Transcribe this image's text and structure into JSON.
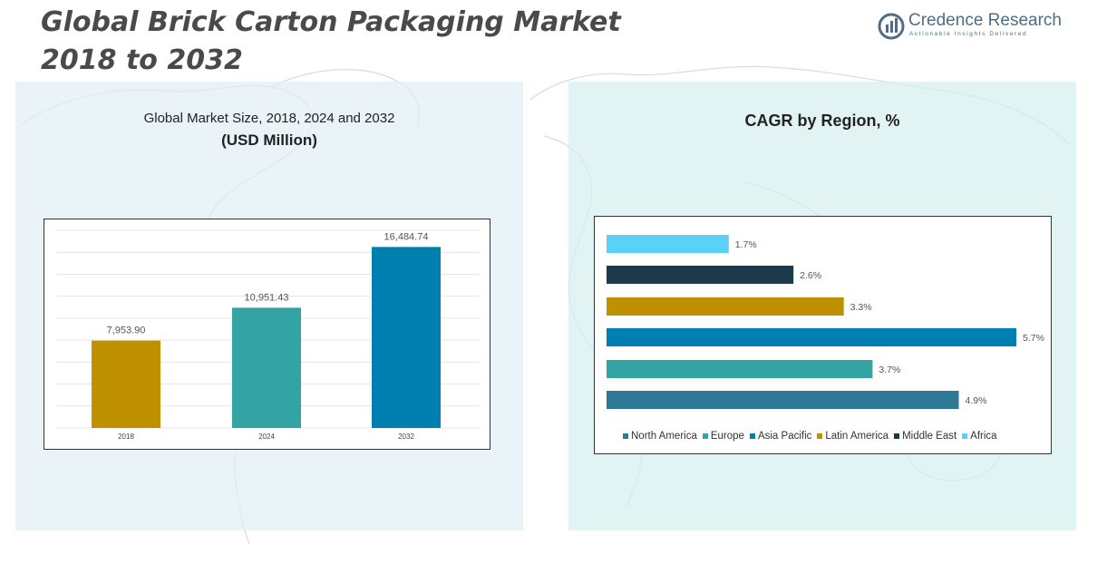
{
  "title": "Global Brick Carton Packaging Market 2018 to 2032",
  "logo": {
    "name": "Credence Research",
    "tagline": "Actionable Insights Delivered",
    "icon": "bar-chart-circle-icon"
  },
  "left_panel": {
    "subtitle": "Global Market Size, 2018, 2024 and 2032",
    "unit": "(USD Million)"
  },
  "right_panel": {
    "title": "CAGR by Region, %"
  },
  "colors": {
    "gold": "#bf9000",
    "teal": "#33a3a3",
    "blue": "#0080b0",
    "dark": "#1b3a4b",
    "light_blue": "#5bd1f7",
    "steel": "#2f7896"
  },
  "chart_data": [
    {
      "type": "bar",
      "title": "Global Market Size, 2018, 2024 and 2032",
      "ylabel": "(USD Million)",
      "categories": [
        "2018",
        "2024",
        "2032"
      ],
      "values": [
        7953.9,
        10951.43,
        16484.74
      ],
      "labels": [
        "7,953.90",
        "10,951.43",
        "16,484.74"
      ],
      "colors": [
        "#bf9000",
        "#33a3a3",
        "#0080b0"
      ],
      "ylim": [
        0,
        18000
      ],
      "grid": true
    },
    {
      "type": "bar",
      "orientation": "horizontal",
      "title": "CAGR by Region, %",
      "categories": [
        "North America",
        "Europe",
        "Asia Pacific",
        "Latin America",
        "Middle East",
        "Africa"
      ],
      "values": [
        4.9,
        3.7,
        5.7,
        3.3,
        2.6,
        1.7
      ],
      "labels": [
        "4.9%",
        "3.7%",
        "5.7%",
        "3.3%",
        "2.6%",
        "1.7%"
      ],
      "colors": [
        "#2f7896",
        "#33a3a3",
        "#0080b0",
        "#bf9000",
        "#1b3a4b",
        "#5bd1f7"
      ],
      "xlim": [
        0,
        5.7
      ],
      "legend_position": "bottom"
    }
  ]
}
